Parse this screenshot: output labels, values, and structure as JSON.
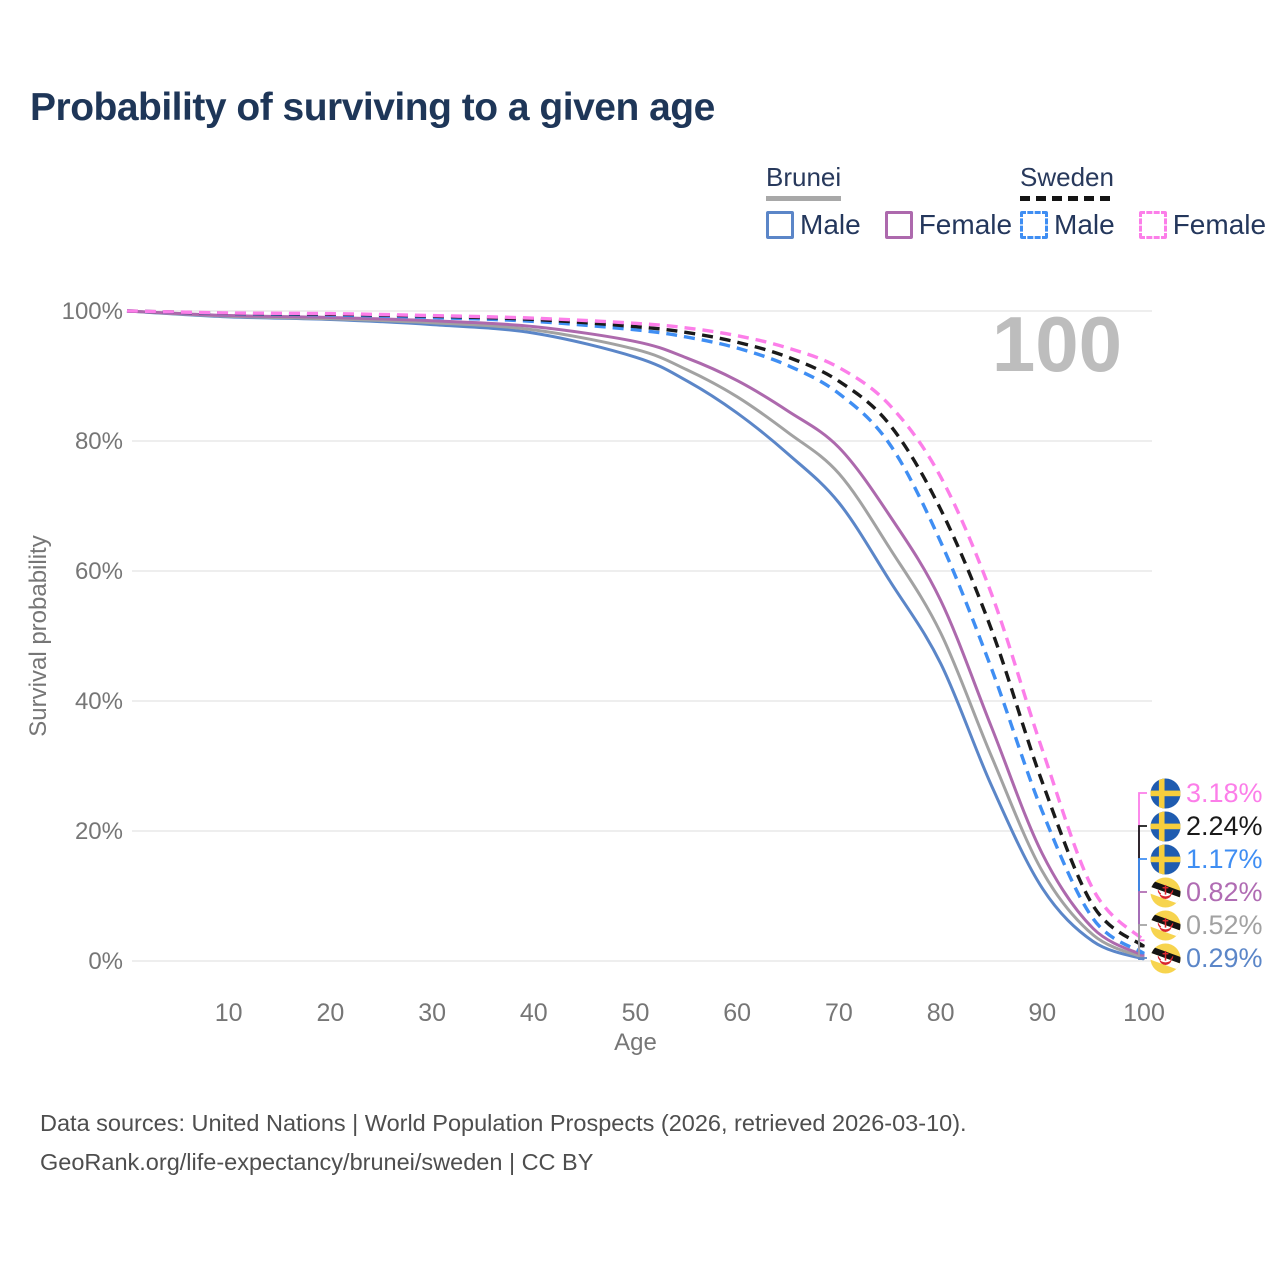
{
  "header": {
    "title": "Probability of surviving to a given age"
  },
  "legend": {
    "groups": [
      {
        "country": "Brunei",
        "line_style": "solid",
        "underline_color": "#a8a8a8",
        "items": [
          {
            "label": "Male",
            "color": "#5b86c8"
          },
          {
            "label": "Female",
            "color": "#ad69ad"
          }
        ]
      },
      {
        "country": "Sweden",
        "line_style": "dashed",
        "underline_color": "#141414",
        "items": [
          {
            "label": "Male",
            "color": "#3f8ef3"
          },
          {
            "label": "Female",
            "color": "#fc7ee9"
          }
        ]
      }
    ]
  },
  "chart_data": {
    "type": "line",
    "title": "Probability of surviving to a given age",
    "xlabel": "Age",
    "ylabel": "Survival probability",
    "xlim": [
      0,
      100
    ],
    "ylim": [
      0,
      100
    ],
    "grid": "horizontal",
    "legend_position": "top-right",
    "age_counter_watermark": "100",
    "x_ticks": [
      10,
      20,
      30,
      40,
      50,
      60,
      70,
      80,
      90,
      100
    ],
    "y_ticks": [
      {
        "v": 0,
        "label": "0%"
      },
      {
        "v": 20,
        "label": "20%"
      },
      {
        "v": 40,
        "label": "40%"
      },
      {
        "v": 60,
        "label": "60%"
      },
      {
        "v": 80,
        "label": "80%"
      },
      {
        "v": 100,
        "label": "100%"
      }
    ],
    "ages": [
      0,
      10,
      20,
      30,
      40,
      50,
      55,
      60,
      65,
      70,
      75,
      80,
      85,
      90,
      95,
      100
    ],
    "series": [
      {
        "name": "Sweden Female",
        "country": "Sweden",
        "sex": "Female",
        "style": "dashed",
        "color": "#fc7ee9",
        "values": [
          100,
          99.7,
          99.6,
          99.3,
          98.9,
          98.1,
          97.4,
          96.2,
          94.3,
          91.3,
          85.5,
          74.5,
          56.5,
          32.5,
          11.0,
          3.18
        ]
      },
      {
        "name": "Sweden Both sexes",
        "country": "Sweden",
        "sex": "Both",
        "style": "dashed",
        "color": "#1a1a1a",
        "values": [
          100,
          99.65,
          99.5,
          99.2,
          98.7,
          97.6,
          96.7,
          95.2,
          92.9,
          89.2,
          82.5,
          69.5,
          51.0,
          27.5,
          8.5,
          2.24
        ]
      },
      {
        "name": "Sweden Male",
        "country": "Sweden",
        "sex": "Male",
        "style": "dashed",
        "color": "#3f8ef3",
        "values": [
          100,
          99.6,
          99.4,
          99.0,
          98.4,
          97.1,
          96.0,
          94.3,
          91.6,
          87.3,
          79.5,
          64.5,
          45.0,
          23.0,
          6.5,
          1.17
        ]
      },
      {
        "name": "Brunei Female",
        "country": "Brunei",
        "sex": "Female",
        "style": "solid",
        "color": "#ad69ad",
        "values": [
          100,
          99.3,
          99.0,
          98.5,
          97.6,
          95.3,
          92.8,
          89.3,
          84.6,
          79.0,
          68.5,
          55.5,
          36.0,
          16.5,
          5.0,
          0.82
        ]
      },
      {
        "name": "Brunei Both sexes",
        "country": "Brunei",
        "sex": "Both",
        "style": "solid",
        "color": "#a2a2a2",
        "values": [
          100,
          99.2,
          98.8,
          98.2,
          97.1,
          94.1,
          91.0,
          86.8,
          81.3,
          75.0,
          63.5,
          50.5,
          31.5,
          13.8,
          4.0,
          0.52
        ]
      },
      {
        "name": "Brunei Male",
        "country": "Brunei",
        "sex": "Male",
        "style": "solid",
        "color": "#5b86c8",
        "values": [
          100,
          99.1,
          98.7,
          97.9,
          96.6,
          92.9,
          89.3,
          84.3,
          78.0,
          70.5,
          58.5,
          45.8,
          27.0,
          11.2,
          3.0,
          0.29
        ]
      }
    ],
    "end_labels": [
      {
        "text": "3.18%",
        "value": 3.18,
        "flag": "sweden",
        "color": "#fc7ee9"
      },
      {
        "text": "2.24%",
        "value": 2.24,
        "flag": "sweden",
        "color": "#1a1a1a"
      },
      {
        "text": "1.17%",
        "value": 1.17,
        "flag": "sweden",
        "color": "#3f8ef3"
      },
      {
        "text": "0.82%",
        "value": 0.82,
        "flag": "brunei",
        "color": "#b06cb3"
      },
      {
        "text": "0.52%",
        "value": 0.52,
        "flag": "brunei",
        "color": "#a2a2a2"
      },
      {
        "text": "0.29%",
        "value": 0.29,
        "flag": "brunei",
        "color": "#5b86c8"
      }
    ]
  },
  "footer": {
    "line1": "Data sources: United Nations | World Population Prospects (2026, retrieved 2026-03-10).",
    "line2": "GeoRank.org/life-expectancy/brunei/sweden | CC BY"
  }
}
